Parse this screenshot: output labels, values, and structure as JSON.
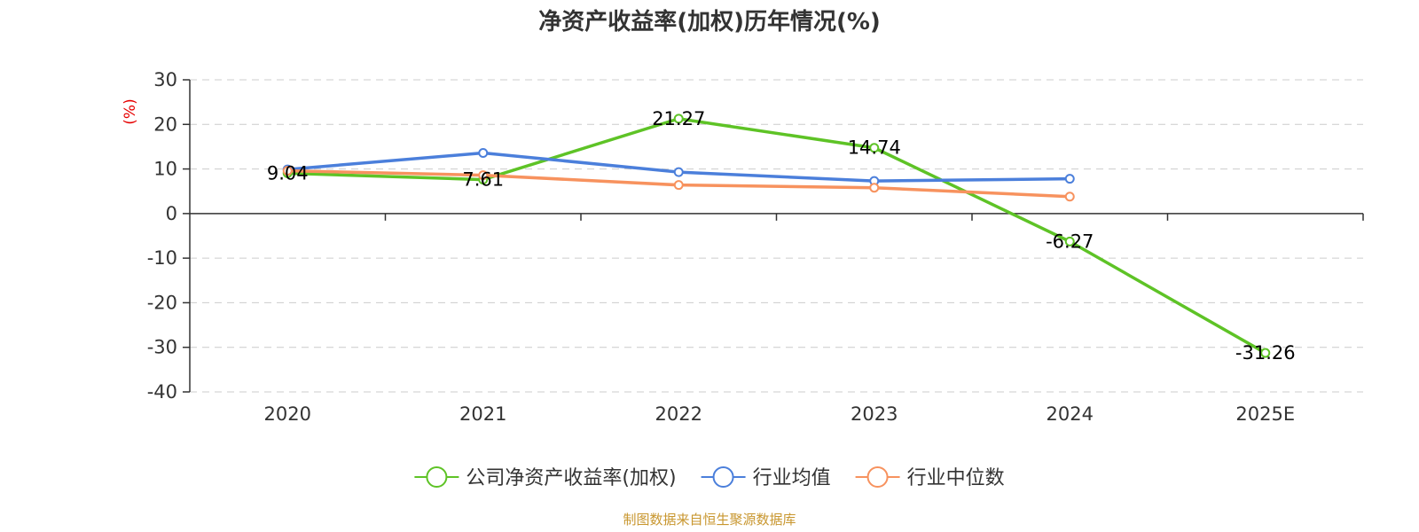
{
  "chart_data": {
    "type": "line",
    "title": "净资产收益率(加权)历年情况(%)",
    "ylabel": "(%)",
    "categories": [
      "2020",
      "2021",
      "2022",
      "2023",
      "2024",
      "2025E"
    ],
    "ylim": [
      -40,
      30
    ],
    "yticks": [
      30,
      20,
      10,
      0,
      -10,
      -20,
      -30,
      -40
    ],
    "grid": true,
    "legend_position": "bottom",
    "series": [
      {
        "name": "公司净资产收益率(加权)",
        "color": "#5ec326",
        "values": [
          9.04,
          7.61,
          21.27,
          14.74,
          -6.27,
          -31.26
        ],
        "labels": [
          "9.04",
          "7.61",
          "21.27",
          "14.74",
          "-6.27",
          "-31.26"
        ]
      },
      {
        "name": "行业均值",
        "color": "#4b7fdb",
        "values": [
          9.9,
          13.6,
          9.3,
          7.3,
          7.8,
          null
        ]
      },
      {
        "name": "行业中位数",
        "color": "#f7925e",
        "values": [
          9.6,
          8.6,
          6.4,
          5.8,
          3.8,
          null
        ]
      }
    ],
    "source": "制图数据来自恒生聚源数据库"
  }
}
